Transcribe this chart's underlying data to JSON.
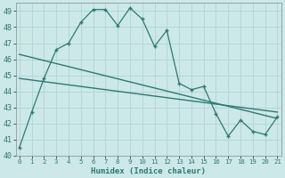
{
  "xlabel": "Humidex (Indice chaleur)",
  "bg_color": "#cce8e8",
  "grid_color": "#b0d4d4",
  "line_color": "#2d7a72",
  "ylim": [
    40,
    49.5
  ],
  "xlim": [
    -0.3,
    21.3
  ],
  "yticks": [
    40,
    41,
    42,
    43,
    44,
    45,
    46,
    47,
    48,
    49
  ],
  "xticks": [
    0,
    1,
    2,
    3,
    4,
    5,
    6,
    7,
    8,
    9,
    10,
    11,
    12,
    13,
    14,
    15,
    16,
    17,
    18,
    19,
    20,
    21
  ],
  "x": [
    0,
    1,
    2,
    3,
    4,
    5,
    6,
    7,
    8,
    9,
    10,
    11,
    12,
    13,
    14,
    15,
    16,
    17,
    18,
    19,
    20,
    21
  ],
  "y_jagged": [
    40.5,
    42.7,
    44.8,
    46.6,
    47.0,
    48.3,
    49.1,
    49.1,
    48.1,
    49.2,
    48.5,
    46.8,
    47.8,
    44.5,
    44.1,
    44.3,
    42.6,
    41.2,
    42.2,
    41.5,
    41.3,
    42.4
  ],
  "trend1_x": [
    0,
    21
  ],
  "trend1_y": [
    46.3,
    42.3
  ],
  "trend2_x": [
    0,
    21
  ],
  "trend2_y": [
    44.8,
    42.7
  ]
}
